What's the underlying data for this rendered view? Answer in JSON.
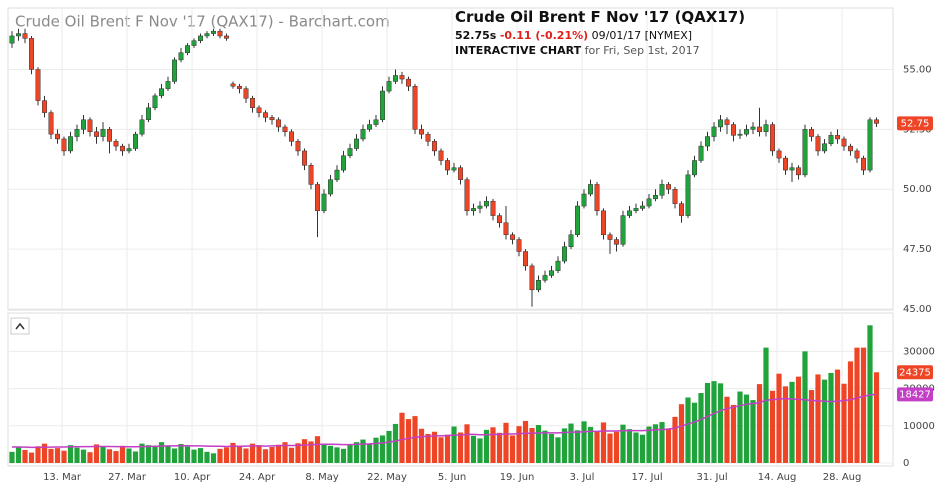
{
  "header": {
    "watermark": "Crude Oil Brent F Nov '17 (QAX17) - Barchart.com",
    "title": "Crude Oil Brent F Nov '17 (QAX17)",
    "last": "52.75s",
    "change": "-0.11 (-0.21%)",
    "date_exchange": "09/01/17 [NYMEX]",
    "chart_label": "INTERACTIVE CHART",
    "chart_date": "for Fri, Sep 1st, 2017"
  },
  "chart_data": {
    "type": "candlestick",
    "open": [
      56.1,
      56.4,
      56.5,
      56.3,
      55.0,
      53.7,
      53.2,
      52.3,
      52.1,
      51.6,
      52.2,
      52.5,
      52.9,
      52.4,
      52.2,
      52.5,
      52.0,
      51.8,
      51.6,
      51.7,
      52.3,
      52.9,
      53.4,
      53.9,
      54.2,
      54.5,
      55.4,
      55.7,
      56.0,
      56.2,
      56.4,
      56.5,
      56.6,
      56.4,
      54.4,
      54.3,
      54.2,
      53.8,
      53.4,
      53.2,
      53.0,
      52.9,
      52.6,
      52.4,
      52.0,
      51.6,
      51.0,
      50.2,
      49.1,
      49.8,
      50.4,
      50.8,
      51.4,
      51.7,
      52.1,
      52.5,
      52.7,
      52.9,
      54.1,
      54.5,
      54.75,
      54.6,
      54.3,
      52.5,
      52.3,
      52.0,
      51.6,
      51.2,
      50.8,
      50.9,
      50.4,
      49.1,
      49.2,
      49.3,
      49.5,
      48.9,
      48.6,
      48.1,
      47.9,
      47.4,
      46.8,
      45.8,
      46.2,
      46.4,
      46.6,
      47.0,
      47.6,
      48.1,
      49.3,
      49.8,
      50.2,
      49.1,
      48.1,
      47.9,
      47.7,
      48.9,
      49.1,
      49.2,
      49.3,
      49.6,
      49.75,
      50.2,
      50.0,
      49.4,
      48.9,
      50.6,
      51.2,
      51.8,
      52.2,
      52.6,
      52.9,
      52.7,
      52.25,
      52.3,
      52.5,
      52.6,
      52.4,
      52.7,
      51.6,
      51.3,
      50.8,
      50.9,
      50.6,
      52.5,
      52.2,
      51.6,
      51.9,
      52.25,
      52.1,
      51.8,
      51.6,
      51.3,
      50.8,
      52.9
    ],
    "high": [
      56.6,
      56.7,
      56.7,
      56.4,
      55.1,
      53.9,
      53.3,
      52.5,
      52.2,
      52.4,
      52.7,
      53.1,
      53.0,
      52.6,
      52.8,
      52.6,
      52.1,
      51.9,
      51.9,
      52.4,
      53.1,
      53.6,
      54.0,
      54.4,
      54.7,
      55.5,
      55.9,
      56.1,
      56.3,
      56.5,
      56.6,
      56.7,
      56.7,
      56.5,
      54.5,
      54.4,
      54.3,
      53.9,
      53.5,
      53.3,
      53.1,
      53.0,
      52.7,
      52.5,
      52.1,
      51.7,
      51.1,
      50.3,
      50.0,
      50.6,
      51.0,
      51.6,
      51.9,
      52.3,
      52.7,
      52.9,
      53.1,
      54.3,
      54.7,
      55.0,
      54.9,
      54.7,
      54.4,
      52.7,
      52.4,
      52.1,
      51.7,
      51.3,
      51.1,
      51.0,
      50.5,
      49.4,
      49.5,
      49.7,
      49.6,
      49.0,
      49.3,
      48.2,
      48.0,
      47.5,
      46.9,
      46.4,
      46.6,
      46.8,
      47.2,
      47.8,
      48.3,
      49.5,
      50.0,
      50.4,
      50.3,
      49.2,
      48.2,
      48.0,
      49.1,
      49.3,
      49.4,
      49.5,
      49.8,
      50.0,
      50.4,
      50.3,
      50.1,
      49.5,
      50.8,
      51.4,
      52.0,
      52.4,
      52.8,
      53.1,
      53.0,
      52.8,
      52.5,
      52.7,
      52.8,
      53.4,
      52.9,
      52.8,
      51.7,
      51.4,
      51.1,
      51.0,
      52.7,
      52.6,
      52.3,
      52.1,
      52.4,
      52.5,
      52.2,
      51.9,
      51.7,
      51.4,
      53.0,
      53.0
    ],
    "low": [
      55.9,
      56.2,
      56.1,
      54.8,
      53.5,
      53.0,
      52.1,
      51.9,
      51.4,
      51.5,
      52.0,
      52.3,
      52.2,
      51.9,
      52.0,
      51.5,
      51.6,
      51.4,
      51.5,
      51.6,
      52.2,
      52.8,
      53.3,
      53.8,
      54.1,
      54.4,
      55.3,
      55.6,
      55.9,
      56.1,
      56.3,
      56.4,
      56.3,
      56.2,
      54.2,
      54.0,
      53.6,
      53.2,
      53.0,
      52.8,
      52.7,
      52.4,
      52.2,
      51.8,
      51.4,
      50.8,
      50.0,
      48.0,
      49.0,
      49.7,
      50.3,
      50.7,
      51.3,
      51.6,
      52.0,
      52.4,
      52.6,
      52.8,
      54.0,
      54.4,
      54.4,
      54.1,
      52.3,
      52.1,
      51.8,
      51.4,
      51.0,
      50.6,
      50.7,
      50.2,
      48.9,
      48.9,
      49.0,
      49.2,
      48.7,
      48.4,
      47.9,
      47.7,
      47.2,
      46.6,
      45.1,
      45.7,
      46.1,
      46.3,
      46.5,
      46.9,
      47.5,
      48.0,
      49.2,
      49.7,
      48.9,
      47.9,
      47.3,
      47.4,
      47.6,
      48.8,
      49.0,
      49.1,
      49.2,
      49.5,
      49.6,
      49.8,
      49.2,
      48.6,
      48.8,
      50.5,
      51.1,
      51.6,
      52.0,
      52.4,
      52.3,
      52.0,
      52.1,
      52.2,
      52.3,
      52.2,
      52.2,
      51.4,
      51.1,
      50.6,
      50.3,
      50.4,
      50.5,
      52.0,
      51.4,
      51.5,
      51.8,
      51.9,
      51.6,
      51.4,
      51.1,
      50.6,
      50.7,
      52.6
    ],
    "close": [
      56.4,
      56.5,
      56.3,
      55.0,
      53.7,
      53.2,
      52.3,
      52.1,
      51.6,
      52.2,
      52.5,
      52.9,
      52.4,
      52.2,
      52.5,
      52.0,
      51.8,
      51.6,
      51.7,
      52.3,
      52.9,
      53.4,
      53.9,
      54.2,
      54.5,
      55.4,
      55.7,
      56.0,
      56.2,
      56.4,
      56.5,
      56.6,
      56.4,
      56.3,
      54.3,
      54.2,
      53.8,
      53.4,
      53.2,
      53.0,
      52.9,
      52.6,
      52.4,
      52.0,
      51.6,
      51.0,
      50.2,
      49.1,
      49.8,
      50.4,
      50.8,
      51.4,
      51.7,
      52.1,
      52.5,
      52.7,
      52.9,
      54.1,
      54.5,
      54.75,
      54.6,
      54.3,
      52.5,
      52.3,
      52.0,
      51.6,
      51.2,
      50.8,
      50.9,
      50.4,
      49.1,
      49.2,
      49.3,
      49.5,
      48.9,
      48.6,
      48.1,
      47.9,
      47.4,
      46.8,
      45.8,
      46.2,
      46.4,
      46.6,
      47.0,
      47.6,
      48.1,
      49.3,
      49.8,
      50.2,
      49.1,
      48.1,
      47.9,
      47.7,
      48.9,
      49.1,
      49.2,
      49.3,
      49.6,
      49.75,
      50.2,
      50.0,
      49.4,
      48.9,
      50.6,
      51.2,
      51.8,
      52.2,
      52.6,
      52.9,
      52.7,
      52.25,
      52.3,
      52.5,
      52.6,
      52.4,
      52.7,
      51.6,
      51.3,
      50.8,
      50.9,
      50.6,
      52.5,
      52.2,
      51.6,
      51.9,
      52.25,
      52.1,
      51.8,
      51.6,
      51.3,
      50.8,
      52.9,
      52.75
    ],
    "volume": [
      3000,
      4200,
      3500,
      2800,
      4500,
      5200,
      3800,
      4000,
      3300,
      4800,
      4100,
      3600,
      2900,
      5000,
      4400,
      3700,
      3200,
      4600,
      3900,
      3100,
      5200,
      4800,
      4300,
      5600,
      4700,
      3900,
      5100,
      4400,
      3600,
      4000,
      3000,
      2600,
      3800,
      4200,
      5400,
      4600,
      3900,
      5200,
      4800,
      3700,
      4300,
      4900,
      5600,
      4100,
      5300,
      6400,
      5800,
      7200,
      5000,
      4600,
      4200,
      3800,
      4900,
      5600,
      6300,
      5100,
      6800,
      7400,
      8600,
      10500,
      13500,
      11800,
      12600,
      9200,
      7800,
      8400,
      6900,
      7600,
      9800,
      8200,
      10400,
      7300,
      6600,
      8900,
      9600,
      8100,
      10800,
      7400,
      9900,
      11300,
      9400,
      10200,
      8700,
      7800,
      6900,
      9300,
      10600,
      8800,
      11200,
      9700,
      8600,
      10900,
      7900,
      8400,
      10300,
      9100,
      8200,
      7600,
      9800,
      10400,
      11000,
      9300,
      12400,
      15800,
      17600,
      16200,
      18800,
      21500,
      22000,
      21400,
      17800,
      15600,
      19200,
      18400,
      16900,
      21200,
      31000,
      19400,
      24000,
      20600,
      21800,
      23200,
      30000,
      19600,
      23800,
      22400,
      24200,
      25100,
      21300,
      27300,
      31000,
      31000,
      37000,
      24375
    ],
    "volume_ma": [
      4300,
      4300,
      4250,
      4200,
      4200,
      4250,
      4250,
      4300,
      4300,
      4350,
      4350,
      4400,
      4400,
      4450,
      4450,
      4450,
      4400,
      4400,
      4350,
      4350,
      4400,
      4450,
      4500,
      4550,
      4600,
      4600,
      4650,
      4650,
      4600,
      4600,
      4550,
      4500,
      4500,
      4450,
      4500,
      4500,
      4550,
      4600,
      4600,
      4550,
      4600,
      4650,
      4700,
      4700,
      4750,
      4850,
      4900,
      5000,
      5050,
      5050,
      5000,
      4950,
      4950,
      5000,
      5100,
      5150,
      5250,
      5400,
      5600,
      5900,
      6300,
      6600,
      6900,
      7100,
      7200,
      7300,
      7300,
      7400,
      7500,
      7500,
      7700,
      7700,
      7600,
      7600,
      7700,
      7700,
      7800,
      7800,
      7900,
      8000,
      8000,
      8100,
      8100,
      8100,
      8100,
      8200,
      8300,
      8300,
      8400,
      8500,
      8500,
      8600,
      8600,
      8600,
      8700,
      8700,
      8700,
      8700,
      8800,
      8900,
      9000,
      9100,
      9400,
      9900,
      10500,
      11000,
      11700,
      12500,
      13300,
      14100,
      14600,
      15000,
      15400,
      15800,
      16000,
      16200,
      16900,
      17000,
      17200,
      17300,
      17200,
      17100,
      17000,
      16800,
      16700,
      16600,
      16500,
      16600,
      16800,
      17000,
      17500,
      17900,
      18300,
      18427
    ],
    "xticks": [
      "13. Mar",
      "27. Mar",
      "10. Apr",
      "24. Apr",
      "8. May",
      "22. May",
      "5. Jun",
      "19. Jun",
      "3. Jul",
      "17. Jul",
      "31. Jul",
      "14. Aug",
      "28. Aug"
    ],
    "ylim": [
      45,
      57.4
    ],
    "yticks": [
      {
        "value": 45,
        "label": "45.00"
      },
      {
        "value": 47.5,
        "label": "47.50"
      },
      {
        "value": 50,
        "label": "50.00"
      },
      {
        "value": 52.5,
        "label": "52.50"
      },
      {
        "value": 55,
        "label": "55.00"
      }
    ],
    "y2lim": [
      0,
      39500
    ],
    "y2ticks": [
      0,
      10000,
      20000,
      30000
    ],
    "grid": true,
    "up_color": "#21a33b",
    "down_color": "#ef4527",
    "ma_color": "#c23fc6"
  }
}
